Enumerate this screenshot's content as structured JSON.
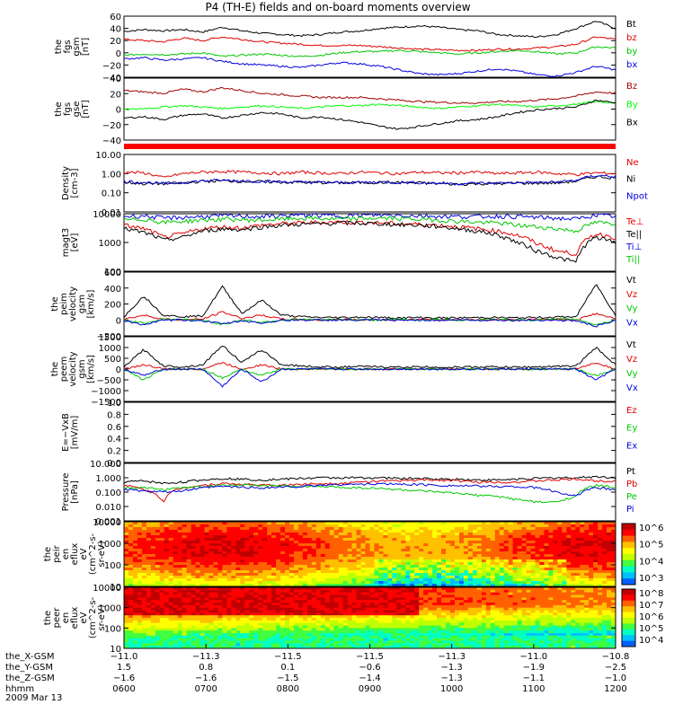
{
  "title": "P4 (TH-E) fields and on-board moments overview",
  "colors": {
    "black": "#000000",
    "red": "#e00000",
    "green": "#00d800",
    "blue": "#0000e0",
    "darkred": "#a00000",
    "brightgreen": "#00ff00"
  },
  "chart_data": [
    {
      "type": "line",
      "id": "fgs_gsm",
      "ylabel": [
        "the",
        "fgs",
        "gsm",
        "[nT]"
      ],
      "ylim": [
        -40,
        60
      ],
      "yticks": [
        "60",
        "40",
        "20",
        "0",
        "−20",
        "−40"
      ],
      "series": [
        {
          "name": "Bt",
          "color": "#000000",
          "values": [
            35,
            38,
            36,
            38,
            34,
            42,
            36,
            32,
            30,
            28,
            30,
            34,
            36,
            40,
            42,
            44,
            42,
            38,
            36,
            30,
            28,
            26,
            30,
            40,
            52,
            40
          ]
        },
        {
          "name": "bz",
          "color": "#e00000",
          "values": [
            22,
            20,
            18,
            24,
            20,
            26,
            22,
            18,
            16,
            14,
            12,
            12,
            12,
            10,
            8,
            6,
            5,
            4,
            4,
            6,
            6,
            8,
            10,
            14,
            26,
            22
          ]
        },
        {
          "name": "by",
          "color": "#00c800",
          "values": [
            -4,
            -2,
            -3,
            -2,
            0,
            -6,
            -4,
            -2,
            -4,
            -6,
            -4,
            0,
            2,
            2,
            4,
            2,
            0,
            -2,
            0,
            2,
            4,
            2,
            -2,
            0,
            10,
            8
          ]
        },
        {
          "name": "bx",
          "color": "#0000e0",
          "values": [
            -10,
            -8,
            -12,
            -10,
            -8,
            -14,
            -18,
            -20,
            -22,
            -24,
            -20,
            -16,
            -18,
            -22,
            -28,
            -34,
            -36,
            -34,
            -30,
            -26,
            -30,
            -36,
            -38,
            -32,
            -22,
            -28
          ]
        }
      ]
    },
    {
      "type": "line",
      "id": "fgs_gse",
      "ylabel": [
        "the",
        "fgs",
        "gse",
        "[nT]"
      ],
      "ylim": [
        -50,
        40
      ],
      "yticks": [
        "40",
        "20",
        "0",
        "−20",
        "−40"
      ],
      "series": [
        {
          "name": "Bz",
          "color": "#a00000",
          "values": [
            22,
            20,
            18,
            24,
            20,
            26,
            22,
            18,
            16,
            14,
            12,
            12,
            12,
            10,
            8,
            6,
            5,
            4,
            4,
            6,
            6,
            8,
            10,
            14,
            20,
            18
          ]
        },
        {
          "name": "By",
          "color": "#00ff00",
          "values": [
            -6,
            -4,
            -2,
            0,
            -2,
            -4,
            -2,
            0,
            -2,
            -4,
            -2,
            0,
            0,
            2,
            0,
            -2,
            -4,
            -2,
            0,
            2,
            0,
            -2,
            0,
            2,
            6,
            4
          ]
        },
        {
          "name": "Bx",
          "color": "#000000",
          "values": [
            -18,
            -16,
            -20,
            -14,
            -12,
            -18,
            -14,
            -10,
            -12,
            -18,
            -16,
            -20,
            -24,
            -30,
            -34,
            -30,
            -26,
            -22,
            -20,
            -16,
            -10,
            -6,
            -4,
            -2,
            8,
            4
          ]
        }
      ]
    },
    {
      "type": "line",
      "id": "density",
      "ylabel": [
        "Density",
        "[cm-3]"
      ],
      "ylim": [
        0.01,
        10
      ],
      "yscale": "log",
      "yticks": [
        "10.00",
        "1.00",
        "0.10",
        "0.01"
      ],
      "series": [
        {
          "name": "Ne",
          "color": "#e00000",
          "values": [
            1.2,
            1.1,
            0.6,
            1.0,
            1.2,
            1.3,
            1.2,
            1.1,
            1.0,
            1.2,
            1.1,
            1.0,
            1.2,
            1.1,
            1.0,
            1.2,
            1.1,
            1.1,
            1.2,
            1.0,
            1.1,
            1.2,
            1.0,
            0.9,
            1.1,
            1.0
          ]
        },
        {
          "name": "Ni",
          "color": "#000000",
          "values": [
            0.35,
            0.3,
            0.3,
            0.32,
            0.4,
            0.42,
            0.4,
            0.38,
            0.36,
            0.35,
            0.34,
            0.33,
            0.34,
            0.35,
            0.34,
            0.33,
            0.3,
            0.28,
            0.3,
            0.3,
            0.32,
            0.32,
            0.33,
            0.4,
            0.7,
            0.6
          ]
        },
        {
          "name": "Npot",
          "color": "#0000e0",
          "values": [
            0.4,
            0.35,
            0.3,
            0.34,
            0.42,
            0.45,
            0.42,
            0.4,
            0.38,
            0.36,
            0.35,
            0.34,
            0.35,
            0.36,
            0.35,
            0.34,
            0.32,
            0.3,
            0.32,
            0.32,
            0.34,
            0.34,
            0.36,
            0.45,
            0.8,
            0.7
          ]
        }
      ]
    },
    {
      "type": "line",
      "id": "temperature",
      "ylabel": [
        "magt3",
        "[eV]"
      ],
      "ylim": [
        100,
        10000
      ],
      "yscale": "log",
      "yticks": [
        "10000",
        "1000",
        "100"
      ],
      "series": [
        {
          "name": "Te⊥",
          "color": "#e00000",
          "values": [
            4000,
            3000,
            1500,
            2000,
            3000,
            3500,
            3200,
            4000,
            4500,
            4800,
            5000,
            5200,
            5000,
            4800,
            4500,
            4300,
            4000,
            3500,
            3000,
            2500,
            1800,
            900,
            500,
            400,
            2000,
            1500
          ]
        },
        {
          "name": "Te||",
          "color": "#000000",
          "values": [
            3000,
            2200,
            1200,
            1500,
            2500,
            3000,
            2800,
            3500,
            4000,
            4300,
            4500,
            4800,
            4700,
            4500,
            4200,
            4000,
            3600,
            3000,
            2500,
            1800,
            1000,
            500,
            300,
            200,
            1500,
            1000
          ]
        },
        {
          "name": "Ti⊥",
          "color": "#0000e0",
          "values": [
            8000,
            8500,
            7000,
            7500,
            8000,
            8500,
            8200,
            8000,
            8500,
            9000,
            8800,
            8500,
            8800,
            9000,
            8800,
            8500,
            8200,
            8000,
            8000,
            8200,
            8000,
            7500,
            7000,
            6500,
            9000,
            8000
          ]
        },
        {
          "name": "Ti||",
          "color": "#00c800",
          "values": [
            6000,
            6500,
            5000,
            5500,
            6000,
            6500,
            6200,
            6000,
            6500,
            7000,
            6800,
            6500,
            6800,
            7000,
            6800,
            6500,
            6000,
            5500,
            5000,
            4800,
            4000,
            3500,
            3000,
            2500,
            5000,
            4500
          ]
        }
      ]
    },
    {
      "type": "line",
      "id": "peim_velocity",
      "ylabel": [
        "the",
        "peim",
        "velocity",
        "gsm",
        "[km/s]"
      ],
      "ylim": [
        -200,
        600
      ],
      "yticks": [
        "600",
        "400",
        "200",
        "0",
        "−200"
      ],
      "series": [
        {
          "name": "Vt",
          "color": "#000000",
          "values": [
            40,
            300,
            60,
            40,
            50,
            420,
            80,
            250,
            60,
            40,
            30,
            30,
            35,
            30,
            25,
            30,
            25,
            25,
            30,
            30,
            25,
            30,
            35,
            40,
            450,
            60
          ]
        },
        {
          "name": "Vz",
          "color": "#e00000",
          "values": [
            10,
            60,
            10,
            0,
            10,
            100,
            20,
            60,
            10,
            5,
            0,
            5,
            0,
            5,
            0,
            5,
            0,
            5,
            0,
            5,
            0,
            5,
            10,
            0,
            80,
            10
          ]
        },
        {
          "name": "Vy",
          "color": "#00c800",
          "values": [
            0,
            -40,
            10,
            5,
            0,
            -60,
            0,
            -30,
            0,
            5,
            0,
            5,
            0,
            0,
            5,
            0,
            5,
            0,
            0,
            5,
            0,
            0,
            5,
            10,
            -60,
            0
          ]
        },
        {
          "name": "Vx",
          "color": "#0000e0",
          "values": [
            -10,
            -60,
            -5,
            0,
            -10,
            -50,
            -10,
            -40,
            -5,
            0,
            -5,
            0,
            -5,
            0,
            -5,
            0,
            -5,
            0,
            -5,
            0,
            -5,
            0,
            -5,
            -10,
            -80,
            -10
          ]
        }
      ]
    },
    {
      "type": "line",
      "id": "peem_velocity",
      "ylabel": [
        "the",
        "peem",
        "velocity",
        "gsm",
        "[km/s]"
      ],
      "ylim": [
        -1500,
        1500
      ],
      "yticks": [
        "1500",
        "1000",
        "500",
        "0",
        "−500",
        "−1000",
        "−1500"
      ],
      "series": [
        {
          "name": "Vt",
          "color": "#000000",
          "values": [
            100,
            900,
            150,
            100,
            200,
            1100,
            300,
            900,
            200,
            150,
            100,
            100,
            120,
            100,
            90,
            100,
            90,
            90,
            100,
            100,
            90,
            100,
            120,
            150,
            1000,
            200
          ]
        },
        {
          "name": "Vz",
          "color": "#e00000",
          "values": [
            0,
            200,
            0,
            0,
            0,
            300,
            0,
            200,
            0,
            0,
            0,
            0,
            0,
            0,
            0,
            0,
            0,
            0,
            0,
            0,
            0,
            0,
            0,
            0,
            300,
            0
          ]
        },
        {
          "name": "Vy",
          "color": "#00c800",
          "values": [
            0,
            -500,
            0,
            0,
            0,
            -400,
            0,
            -300,
            0,
            0,
            0,
            0,
            0,
            0,
            0,
            0,
            0,
            0,
            0,
            0,
            0,
            0,
            0,
            0,
            -300,
            0
          ]
        },
        {
          "name": "Vx",
          "color": "#0000e0",
          "values": [
            0,
            -300,
            0,
            0,
            0,
            -800,
            0,
            -600,
            0,
            0,
            0,
            0,
            0,
            0,
            0,
            0,
            0,
            0,
            0,
            0,
            0,
            0,
            0,
            0,
            -500,
            0
          ]
        }
      ]
    },
    {
      "type": "line",
      "id": "efield",
      "ylabel": [
        "E=−VxB",
        "[mV/m]"
      ],
      "ylim": [
        0,
        1
      ],
      "yticks": [
        "1.0",
        "0.8",
        "0.6",
        "0.4",
        "0.2",
        "0.0"
      ],
      "series": [
        {
          "name": "Ez",
          "color": "#e00000",
          "values": []
        },
        {
          "name": "Ey",
          "color": "#00c800",
          "values": []
        },
        {
          "name": "Ex",
          "color": "#0000e0",
          "values": []
        }
      ]
    },
    {
      "type": "line",
      "id": "pressure",
      "ylabel": [
        "Pressure",
        "[nPa]"
      ],
      "ylim": [
        0.001,
        10
      ],
      "yscale": "log",
      "yticks": [
        "10.000",
        "1.000",
        "0.100",
        "0.010",
        "0.001"
      ],
      "series": [
        {
          "name": "Pt",
          "color": "#000000",
          "values": [
            0.5,
            0.6,
            0.4,
            0.5,
            0.7,
            0.9,
            0.8,
            0.7,
            0.8,
            0.9,
            1.0,
            1.0,
            1.0,
            1.0,
            0.9,
            0.9,
            0.8,
            0.8,
            0.7,
            0.7,
            0.8,
            0.9,
            1.0,
            1.0,
            1.2,
            1.0
          ]
        },
        {
          "name": "Pb",
          "color": "#e00000",
          "values": [
            0.3,
            0.15,
            0.02,
            0.2,
            0.3,
            0.4,
            0.35,
            0.3,
            0.3,
            0.35,
            0.4,
            0.4,
            0.5,
            0.6,
            0.6,
            0.7,
            0.7,
            0.6,
            0.5,
            0.5,
            0.5,
            0.6,
            0.7,
            0.8,
            0.6,
            0.6
          ]
        },
        {
          "name": "Pe",
          "color": "#00c800",
          "values": [
            0.2,
            0.2,
            0.15,
            0.2,
            0.25,
            0.3,
            0.3,
            0.28,
            0.26,
            0.25,
            0.24,
            0.22,
            0.2,
            0.18,
            0.15,
            0.12,
            0.1,
            0.08,
            0.06,
            0.05,
            0.03,
            0.02,
            0.02,
            0.05,
            0.3,
            0.2
          ]
        },
        {
          "name": "Pi",
          "color": "#0000e0",
          "values": [
            0.15,
            0.12,
            0.1,
            0.12,
            0.2,
            0.25,
            0.22,
            0.2,
            0.22,
            0.25,
            0.3,
            0.35,
            0.35,
            0.38,
            0.36,
            0.34,
            0.3,
            0.28,
            0.26,
            0.25,
            0.24,
            0.2,
            0.1,
            0.05,
            0.2,
            0.15
          ]
        }
      ]
    },
    {
      "type": "heatmap",
      "id": "peir_spectrogram",
      "ylabel": [
        "the",
        "peir",
        "en",
        "eflux",
        "eV",
        "(cm^2-s-",
        "sr-eV)"
      ],
      "ylim": [
        5,
        20000
      ],
      "yscale": "log",
      "yticks": [
        "10000",
        "1000",
        "100",
        "10"
      ],
      "colorbar": {
        "ticks": [
          "10^6",
          "10^5",
          "10^4",
          "10^3"
        ]
      }
    },
    {
      "type": "heatmap",
      "id": "peer_spectrogram",
      "ylabel": [
        "the",
        "peer",
        "en",
        "eflux",
        "eV",
        "(cm^2-s-",
        "sr-eV)"
      ],
      "ylim": [
        5,
        20000
      ],
      "yscale": "log",
      "yticks": [
        "10000",
        "1000",
        "100",
        "10"
      ],
      "colorbar": {
        "ticks": [
          "10^8",
          "10^7",
          "10^6",
          "10^5",
          "10^4"
        ]
      }
    }
  ],
  "xaxis": {
    "row_labels": [
      "the_X-GSM",
      "the_Y-GSM",
      "the_Z-GSM",
      "hhmm",
      "2009 Mar 13"
    ],
    "columns": [
      [
        "−11.0",
        "1.5",
        "−1.6",
        "0600"
      ],
      [
        "−11.3",
        "0.8",
        "−1.6",
        "0700"
      ],
      [
        "−11.5",
        "0.1",
        "−1.5",
        "0800"
      ],
      [
        "−11.5",
        "−0.6",
        "−1.4",
        "0900"
      ],
      [
        "−11.3",
        "−1.3",
        "−1.3",
        "1000"
      ],
      [
        "−11.0",
        "−1.9",
        "−1.1",
        "1100"
      ],
      [
        "−10.8",
        "−2.5",
        "−1.0",
        "1200"
      ]
    ]
  }
}
